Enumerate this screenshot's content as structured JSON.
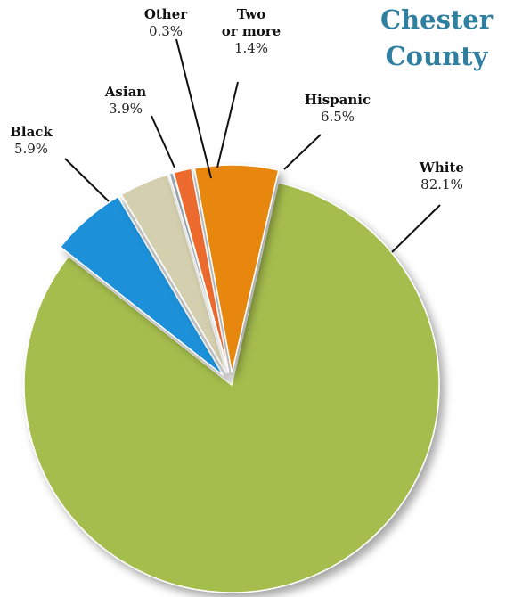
{
  "chart_data": {
    "type": "pie",
    "title": [
      "Chester",
      "County"
    ],
    "slices": [
      {
        "label": [
          "White"
        ],
        "value": 82.1,
        "value_label": "82.1%",
        "color": "#a5bd4d"
      },
      {
        "label": [
          "Black"
        ],
        "value": 5.9,
        "value_label": "5.9%",
        "color": "#1e90d8"
      },
      {
        "label": [
          "Asian"
        ],
        "value": 3.9,
        "value_label": "3.9%",
        "color": "#d4cfae"
      },
      {
        "label": [
          "Other"
        ],
        "value": 0.3,
        "value_label": "0.3%",
        "color": "#9aa9b4"
      },
      {
        "label": [
          "Two",
          "or more"
        ],
        "value": 1.4,
        "value_label": "1.4%",
        "color": "#ec6b2d"
      },
      {
        "label": [
          "Hispanic"
        ],
        "value": 6.5,
        "value_label": "6.5%",
        "color": "#e8870c"
      }
    ]
  },
  "colors": {
    "title": "#2e7fa0"
  }
}
